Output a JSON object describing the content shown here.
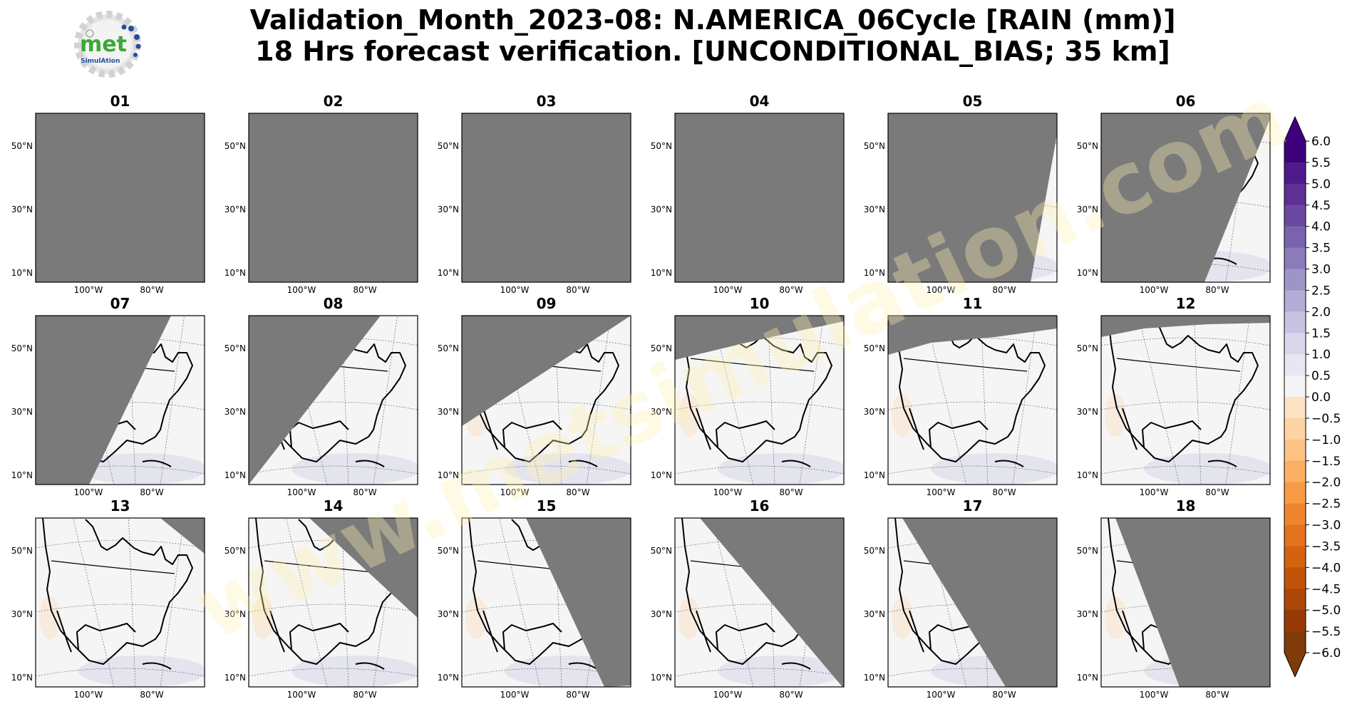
{
  "title": {
    "line1": "Validation_Month_2023-08: N.AMERICA_06Cycle [RAIN (mm)]",
    "line2": "18 Hrs forecast verification. [UNCONDITIONAL_BIAS; 35 km]"
  },
  "logo": {
    "text_main": "met",
    "text_sub": "SimulAtion",
    "icon": "gear-logo-icon"
  },
  "watermark": {
    "text": "www.metsimulation.com"
  },
  "axes": {
    "lat_labels": [
      "50°N",
      "30°N",
      "10°N"
    ],
    "lon_labels": [
      "100°W",
      "80°W"
    ]
  },
  "panels": [
    {
      "label": "01",
      "mask": "full"
    },
    {
      "label": "02",
      "mask": "full"
    },
    {
      "label": "03",
      "mask": "full"
    },
    {
      "label": "04",
      "mask": "full"
    },
    {
      "label": "05",
      "mask": "east-edge"
    },
    {
      "label": "06",
      "mask": "east-wedge"
    },
    {
      "label": "07",
      "mask": "west-large"
    },
    {
      "label": "08",
      "mask": "west-medium"
    },
    {
      "label": "09",
      "mask": "north-west"
    },
    {
      "label": "10",
      "mask": "north-arc"
    },
    {
      "label": "11",
      "mask": "north-thin"
    },
    {
      "label": "12",
      "mask": "north-very-thin"
    },
    {
      "label": "13",
      "mask": "ne-corner"
    },
    {
      "label": "14",
      "mask": "ne-small"
    },
    {
      "label": "15",
      "mask": "east-medium"
    },
    {
      "label": "16",
      "mask": "east-large"
    },
    {
      "label": "17",
      "mask": "east-xlarge"
    },
    {
      "label": "18",
      "mask": "east-xxlarge"
    }
  ],
  "colorbar": {
    "ticks": [
      "6.0",
      "5.5",
      "5.0",
      "4.5",
      "4.0",
      "3.5",
      "3.0",
      "2.5",
      "2.0",
      "1.5",
      "1.0",
      "0.5",
      "0.0",
      "−0.5",
      "−1.0",
      "−1.5",
      "−2.0",
      "−2.5",
      "−3.0",
      "−3.5",
      "−4.0",
      "−4.5",
      "−5.0",
      "−5.5",
      "−6.0"
    ],
    "colors": [
      "#3f007d",
      "#4f1a8a",
      "#5e2f94",
      "#6a4aa0",
      "#7a63ad",
      "#8a7cbb",
      "#9c95c8",
      "#b2add6",
      "#c6c4e2",
      "#d8d7ec",
      "#e7e7f2",
      "#f4f4f6",
      "#fbeedd",
      "#fde3c4",
      "#fdd3a2",
      "#fdc282",
      "#fcae62",
      "#f99a44",
      "#ef862d",
      "#e3731c",
      "#d4620f",
      "#c2540a",
      "#ad4708",
      "#963b07",
      "#7f3b08"
    ]
  },
  "colors": {
    "mask_gray": "#7a7a7a",
    "land_bg": "#f5f5f5"
  }
}
